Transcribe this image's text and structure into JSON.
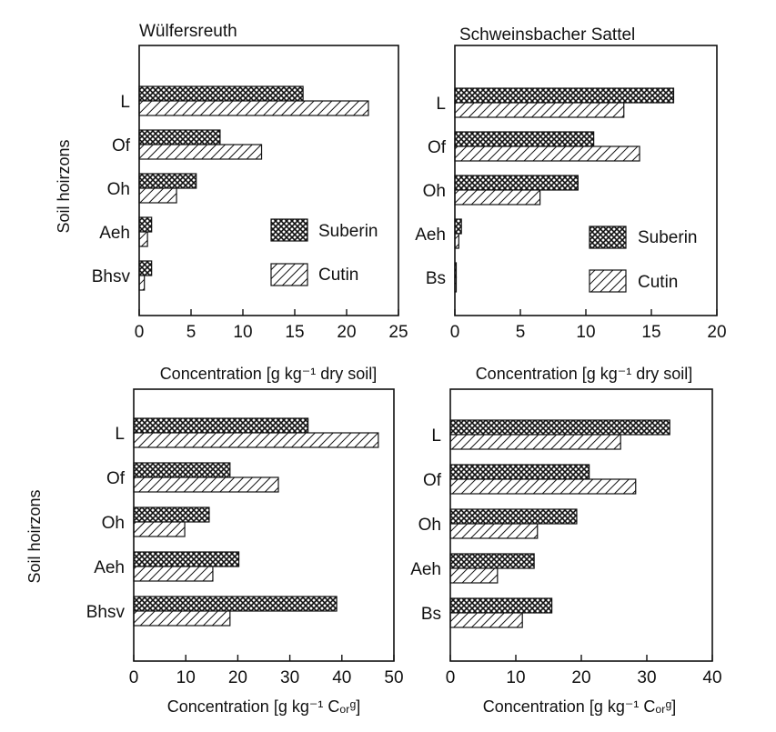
{
  "figure": {
    "ylabel": "Soil hoirzons",
    "xlabel_top": "Concentration [g kg⁻¹ dry soil]",
    "xlabel_bottom": "Concentration [g kg⁻¹ Cₒᵣᵍ]",
    "legend": {
      "suberin": "Suberin",
      "cutin": "Cutin"
    },
    "colors": {
      "ink": "#111111",
      "background": "#ffffff"
    },
    "pattern_names": {
      "Suberin": "crosshatch-pattern",
      "Cutin": "diagonal-hatch-pattern"
    }
  },
  "chart_data": [
    {
      "type": "bar",
      "orientation": "horizontal",
      "title": "Wülfersreuth",
      "categories": [
        "L",
        "Of",
        "Oh",
        "Aeh",
        "Bhsv"
      ],
      "series": [
        {
          "name": "Suberin",
          "values": [
            15.8,
            7.8,
            5.5,
            1.2,
            1.2
          ]
        },
        {
          "name": "Cutin",
          "values": [
            22.1,
            11.8,
            3.6,
            0.8,
            0.5
          ]
        }
      ],
      "xlabel": "Concentration [g kg⁻¹ dry soil]",
      "ylabel": "Soil hoirzons",
      "xlim": [
        0,
        25
      ],
      "xticks": [
        0,
        5,
        10,
        15,
        20,
        25
      ],
      "legend": "inside, lower-right",
      "grid": false
    },
    {
      "type": "bar",
      "orientation": "horizontal",
      "title": "Schweinsbacher Sattel",
      "categories": [
        "L",
        "Of",
        "Oh",
        "Aeh",
        "Bs"
      ],
      "series": [
        {
          "name": "Suberin",
          "values": [
            16.7,
            10.6,
            9.4,
            0.5,
            0.1
          ]
        },
        {
          "name": "Cutin",
          "values": [
            12.9,
            14.1,
            6.5,
            0.3,
            0.1
          ]
        }
      ],
      "xlabel": "Concentration [g kg⁻¹ dry soil]",
      "xlim": [
        0,
        20
      ],
      "xticks": [
        0,
        5,
        10,
        15,
        20
      ],
      "legend": "inside, lower-right",
      "grid": false
    },
    {
      "type": "bar",
      "orientation": "horizontal",
      "categories": [
        "L",
        "Of",
        "Oh",
        "Aeh",
        "Bhsv"
      ],
      "series": [
        {
          "name": "Suberin",
          "values": [
            33.5,
            18.5,
            14.5,
            20.2,
            39.0
          ]
        },
        {
          "name": "Cutin",
          "values": [
            47.0,
            27.8,
            9.8,
            15.2,
            18.5
          ]
        }
      ],
      "xlabel": "Concentration [g kg⁻¹ Cₒᵣᵍ]",
      "ylabel": "Soil hoirzons",
      "xlim": [
        0,
        50
      ],
      "xticks": [
        0,
        10,
        20,
        30,
        40,
        50
      ],
      "grid": false
    },
    {
      "type": "bar",
      "orientation": "horizontal",
      "categories": [
        "L",
        "Of",
        "Oh",
        "Aeh",
        "Bs"
      ],
      "series": [
        {
          "name": "Suberin",
          "values": [
            33.5,
            21.2,
            19.3,
            12.8,
            15.5
          ]
        },
        {
          "name": "Cutin",
          "values": [
            26.0,
            28.3,
            13.3,
            7.2,
            11.0
          ]
        }
      ],
      "xlabel": "Concentration [g kg⁻¹ Cₒᵣᵍ]",
      "xlim": [
        0,
        40
      ],
      "xticks": [
        0,
        10,
        20,
        30,
        40
      ],
      "grid": false
    }
  ]
}
